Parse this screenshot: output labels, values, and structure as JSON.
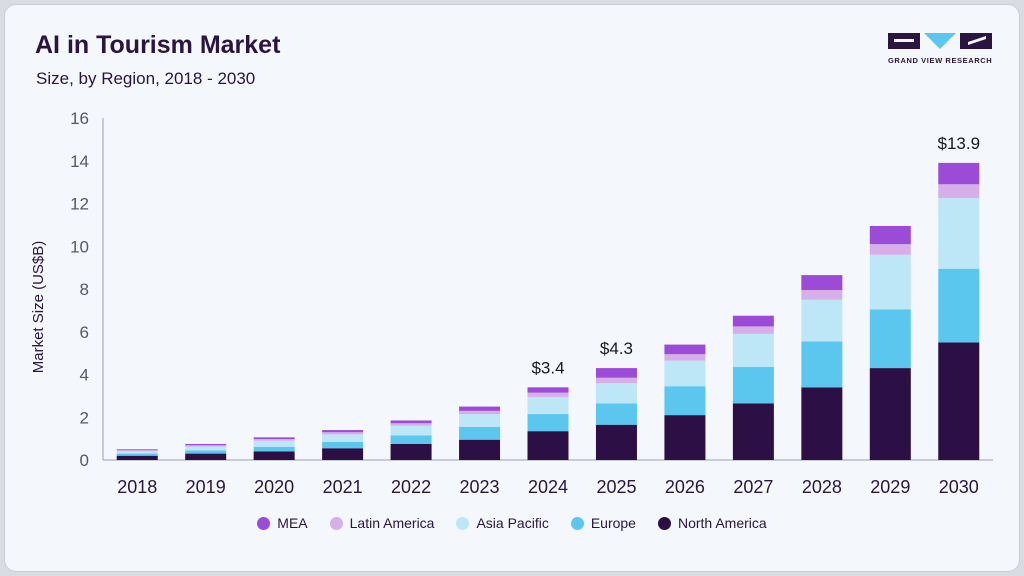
{
  "header": {
    "title": "AI in Tourism Market",
    "subtitle": "Size, by Region, 2018 - 2030"
  },
  "logo": {
    "text": "GRAND VIEW RESEARCH"
  },
  "colors": {
    "MEA": "#9c4bd6",
    "Latin America": "#d6aee8",
    "Asia Pacific": "#bde6f7",
    "Europe": "#5bc7ef",
    "North America": "#2b0f45"
  },
  "chart_data": {
    "type": "bar",
    "stacked": true,
    "title": "AI in Tourism Market",
    "subtitle": "Size, by Region, 2018 - 2030",
    "xlabel": "",
    "ylabel": "Market Size (US$B)",
    "ylim": [
      0,
      16
    ],
    "yticks": [
      0,
      2,
      4,
      6,
      8,
      10,
      12,
      14,
      16
    ],
    "grid": false,
    "legend_position": "bottom",
    "categories": [
      "2018",
      "2019",
      "2020",
      "2021",
      "2022",
      "2023",
      "2024",
      "2025",
      "2026",
      "2027",
      "2028",
      "2029",
      "2030"
    ],
    "series": [
      {
        "name": "North America",
        "values": [
          0.2,
          0.3,
          0.4,
          0.55,
          0.75,
          0.95,
          1.35,
          1.65,
          2.1,
          2.65,
          3.4,
          4.3,
          5.5
        ]
      },
      {
        "name": "Europe",
        "values": [
          0.1,
          0.15,
          0.22,
          0.3,
          0.4,
          0.6,
          0.8,
          1.0,
          1.35,
          1.7,
          2.15,
          2.75,
          3.45
        ]
      },
      {
        "name": "Asia Pacific",
        "values": [
          0.12,
          0.18,
          0.28,
          0.35,
          0.45,
          0.6,
          0.8,
          0.95,
          1.2,
          1.55,
          1.95,
          2.55,
          3.3
        ]
      },
      {
        "name": "Latin America",
        "values": [
          0.04,
          0.06,
          0.08,
          0.1,
          0.12,
          0.15,
          0.2,
          0.25,
          0.3,
          0.35,
          0.45,
          0.5,
          0.65
        ]
      },
      {
        "name": "MEA",
        "values": [
          0.04,
          0.06,
          0.08,
          0.1,
          0.13,
          0.2,
          0.25,
          0.45,
          0.45,
          0.5,
          0.7,
          0.85,
          1.0
        ]
      }
    ],
    "data_labels": [
      {
        "category": "2024",
        "text": "$3.4"
      },
      {
        "category": "2025",
        "text": "$4.3"
      },
      {
        "category": "2030",
        "text": "$13.9"
      }
    ],
    "legend_order": [
      "MEA",
      "Latin America",
      "Asia Pacific",
      "Europe",
      "North America"
    ]
  }
}
